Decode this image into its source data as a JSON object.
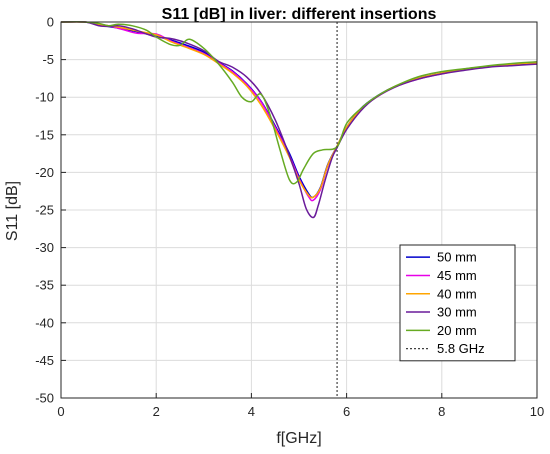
{
  "chart_data": {
    "type": "line",
    "title": "S11 [dB] in liver: different insertions",
    "xlabel": "f[GHz]",
    "ylabel": "S11 [dB]",
    "xlim": [
      0,
      10
    ],
    "ylim": [
      -50,
      0
    ],
    "xticks": [
      0,
      2,
      4,
      6,
      8,
      10
    ],
    "yticks": [
      0,
      -5,
      -10,
      -15,
      -20,
      -25,
      -30,
      -35,
      -40,
      -45,
      -50
    ],
    "grid": true,
    "legend_position": "bottom-right",
    "vline": {
      "name": "5.8 GHz",
      "x": 5.8,
      "color": "#404040",
      "style": "dotted"
    },
    "series": [
      {
        "name": "50 mm",
        "color": "#0000CC",
        "x": [
          0,
          0.5,
          0.8,
          1.0,
          1.3,
          1.6,
          2.0,
          2.3,
          2.6,
          3.0,
          3.3,
          3.6,
          3.9,
          4.2,
          4.5,
          4.8,
          5.0,
          5.2,
          5.3,
          5.45,
          5.6,
          5.8,
          6.0,
          6.3,
          6.6,
          7.0,
          7.5,
          8.0,
          8.5,
          9.0,
          9.5,
          10.0
        ],
        "y": [
          0,
          0,
          -0.4,
          -0.6,
          -0.9,
          -1.3,
          -1.9,
          -2.4,
          -3.0,
          -4.0,
          -5.3,
          -6.5,
          -8.2,
          -10.5,
          -13.8,
          -17.5,
          -20.5,
          -22.8,
          -23.3,
          -22.0,
          -19.0,
          -16.5,
          -14.0,
          -11.5,
          -10.0,
          -8.6,
          -7.5,
          -6.8,
          -6.3,
          -5.9,
          -5.7,
          -5.5
        ]
      },
      {
        "name": "45 mm",
        "color": "#E800E8",
        "x": [
          0,
          0.5,
          0.8,
          1.0,
          1.3,
          1.6,
          2.0,
          2.3,
          2.6,
          3.0,
          3.3,
          3.6,
          3.9,
          4.2,
          4.5,
          4.8,
          5.0,
          5.2,
          5.3,
          5.45,
          5.6,
          5.8,
          6.0,
          6.3,
          6.6,
          7.0,
          7.5,
          8.0,
          8.5,
          9.0,
          9.5,
          10.0
        ],
        "y": [
          0,
          0,
          -0.3,
          -0.5,
          -1.0,
          -1.5,
          -1.6,
          -2.5,
          -3.2,
          -4.2,
          -5.4,
          -6.6,
          -8.3,
          -10.6,
          -14.0,
          -17.8,
          -20.8,
          -23.2,
          -23.7,
          -22.3,
          -19.2,
          -16.6,
          -14.1,
          -11.6,
          -10.1,
          -8.7,
          -7.6,
          -6.9,
          -6.3,
          -5.9,
          -5.6,
          -5.3
        ]
      },
      {
        "name": "40 mm",
        "color": "#FFA500",
        "x": [
          0,
          0.5,
          0.8,
          1.0,
          1.3,
          1.6,
          2.0,
          2.3,
          2.6,
          3.0,
          3.3,
          3.6,
          3.9,
          4.2,
          4.5,
          4.8,
          5.0,
          5.2,
          5.3,
          5.45,
          5.6,
          5.8,
          6.0,
          6.3,
          6.6,
          7.0,
          7.5,
          8.0,
          8.5,
          9.0,
          9.5,
          10.0
        ],
        "y": [
          0,
          0,
          -0.3,
          -0.5,
          -0.8,
          -1.2,
          -1.7,
          -2.6,
          -3.3,
          -4.3,
          -5.5,
          -6.8,
          -8.5,
          -11.0,
          -14.3,
          -18.0,
          -21.0,
          -23.0,
          -23.3,
          -22.1,
          -19.1,
          -16.5,
          -14.0,
          -11.6,
          -10.1,
          -8.6,
          -7.5,
          -6.8,
          -6.3,
          -5.9,
          -5.6,
          -5.4
        ]
      },
      {
        "name": "30 mm",
        "color": "#6A1B9A",
        "x": [
          0,
          0.5,
          0.8,
          1.0,
          1.2,
          1.5,
          1.8,
          2.0,
          2.3,
          2.6,
          3.0,
          3.3,
          3.6,
          3.9,
          4.2,
          4.5,
          4.8,
          5.0,
          5.15,
          5.3,
          5.4,
          5.55,
          5.7,
          5.8,
          6.0,
          6.3,
          6.6,
          7.0,
          7.5,
          8.0,
          8.5,
          9.0,
          9.5,
          10.0
        ],
        "y": [
          0,
          0,
          -0.5,
          -0.6,
          -0.5,
          -0.9,
          -1.6,
          -2.0,
          -2.2,
          -2.7,
          -3.8,
          -5.2,
          -6.0,
          -7.3,
          -9.5,
          -13.0,
          -17.8,
          -21.5,
          -24.8,
          -26.0,
          -24.5,
          -21.0,
          -18.0,
          -16.7,
          -14.3,
          -11.8,
          -10.1,
          -8.7,
          -7.6,
          -6.9,
          -6.4,
          -6.0,
          -5.8,
          -5.6
        ]
      },
      {
        "name": "20 mm",
        "color": "#66AA22",
        "x": [
          0,
          0.5,
          0.8,
          1.0,
          1.2,
          1.5,
          1.8,
          2.0,
          2.3,
          2.5,
          2.7,
          3.0,
          3.3,
          3.6,
          3.8,
          4.0,
          4.2,
          4.4,
          4.6,
          4.8,
          4.95,
          5.1,
          5.3,
          5.5,
          5.8,
          6.0,
          6.3,
          6.6,
          7.0,
          7.5,
          8.0,
          8.5,
          9.0,
          9.5,
          10.0
        ],
        "y": [
          0,
          0,
          -0.2,
          -0.5,
          -0.3,
          -0.5,
          -1.1,
          -2.0,
          -3.0,
          -3.1,
          -2.3,
          -3.5,
          -5.5,
          -8.0,
          -10.0,
          -10.6,
          -9.6,
          -12.5,
          -17.0,
          -21.0,
          -21.3,
          -19.5,
          -17.5,
          -17.0,
          -16.6,
          -13.5,
          -11.5,
          -10.0,
          -8.6,
          -7.3,
          -6.6,
          -6.2,
          -5.8,
          -5.5,
          -5.3
        ]
      }
    ]
  }
}
